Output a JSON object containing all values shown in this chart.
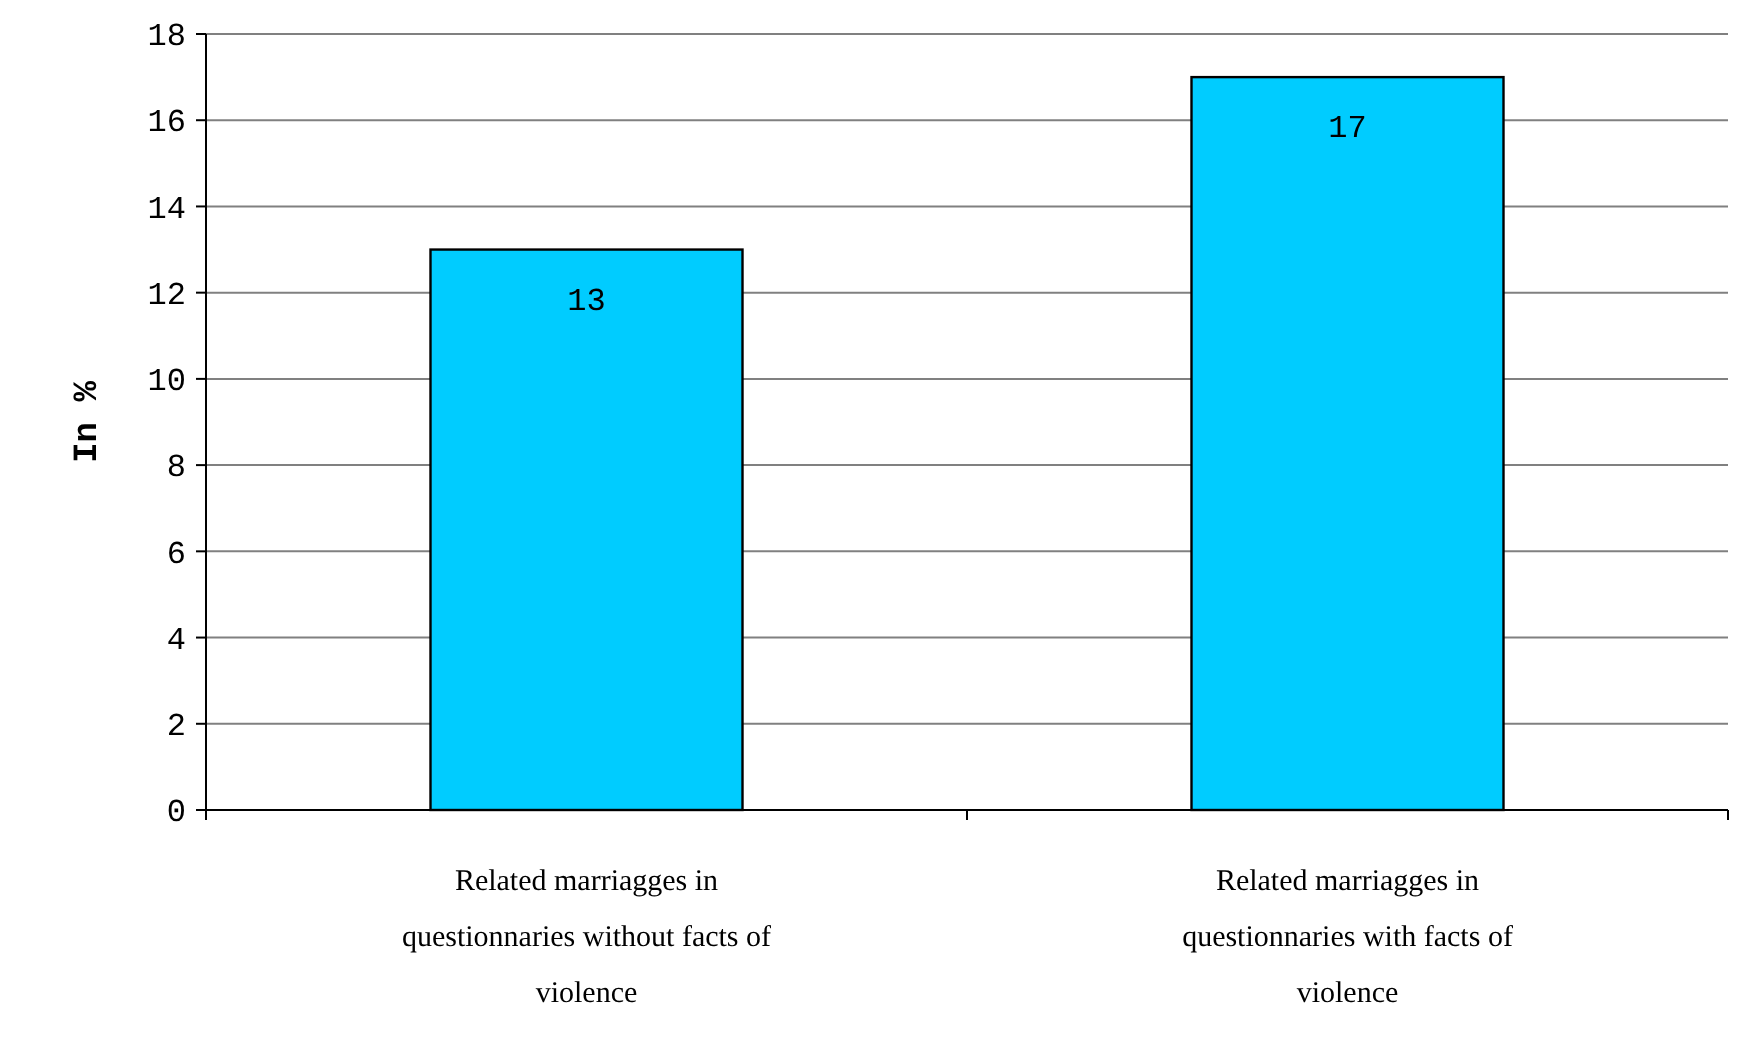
{
  "chart_data": {
    "type": "bar",
    "ylabel": "In %",
    "categories": [
      "Related marriagges in questionnaries without facts of violence",
      "Related marriagges in questionnaries with facts of violence"
    ],
    "values": [
      13,
      17
    ],
    "color": "#00ccff",
    "ylim": [
      0,
      18
    ],
    "yticks": [
      0,
      2,
      4,
      6,
      8,
      10,
      12,
      14,
      16,
      18
    ],
    "grid": "y",
    "data_labels": true
  }
}
